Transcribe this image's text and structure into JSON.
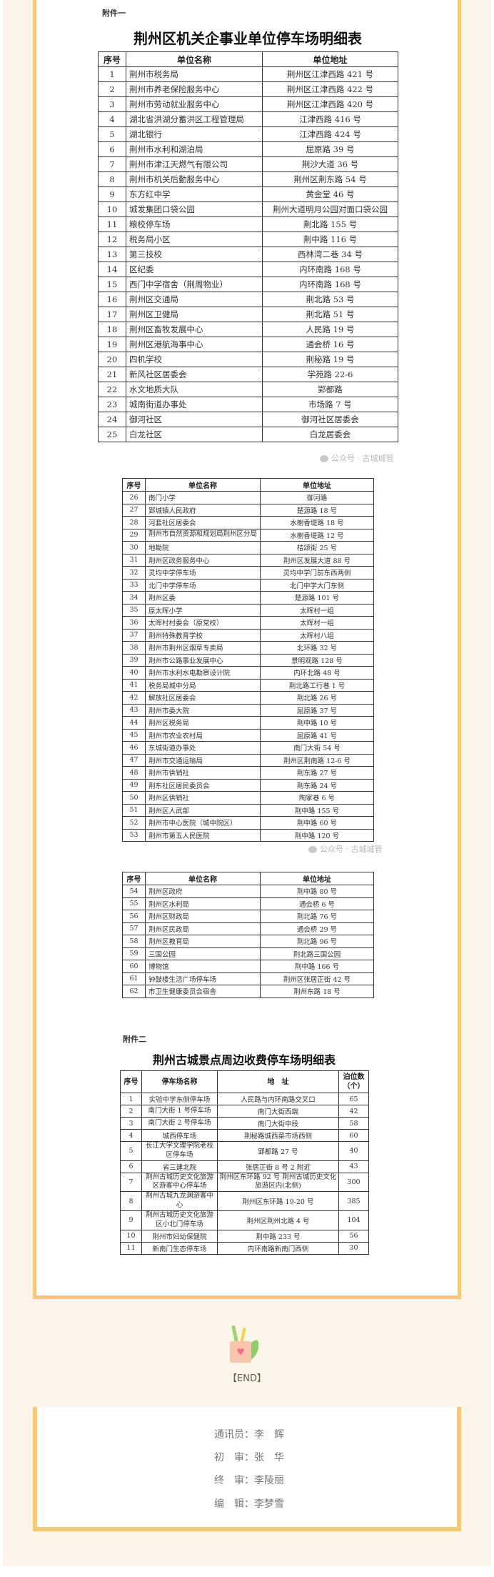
{
  "attachment1": {
    "label": "附件一",
    "title": "荆州区机关企事业单位停车场明细表",
    "headers": [
      "序号",
      "单位名称",
      "单位地址"
    ],
    "rows": [
      [
        "1",
        "荆州市税务局",
        "荆州区江津西路 421 号"
      ],
      [
        "2",
        "荆州市养老保险服务中心",
        "荆州区江津西路 422 号"
      ],
      [
        "3",
        "荆州市劳动就业服务中心",
        "荆州区江津西路 420 号"
      ],
      [
        "4",
        "湖北省洪湖分蓄洪区工程管理局",
        "江津西路 416 号"
      ],
      [
        "5",
        "湖北银行",
        "江津西路 424 号"
      ],
      [
        "6",
        "荆州市水利和湖泊局",
        "屈原路 39 号"
      ],
      [
        "7",
        "荆州市津江天燃气有限公司",
        "荆沙大道 36 号"
      ],
      [
        "8",
        "荆州市机关后勤服务中心",
        "荆州区荆东路 54 号"
      ],
      [
        "9",
        "东方红中学",
        "黄金堂 46 号"
      ],
      [
        "10",
        "城发集团口袋公园",
        "荆州大道明月公园对面口袋公园"
      ],
      [
        "11",
        "粮校停车场",
        "荆北路 155 号"
      ],
      [
        "12",
        "税务局小区",
        "荆中路 116 号"
      ],
      [
        "13",
        "第三技校",
        "西林湾二巷 34 号"
      ],
      [
        "14",
        "区纪委",
        "内环南路 168 号"
      ],
      [
        "15",
        "西门中学宿舍（荆周物业）",
        "内环南路 168 号"
      ],
      [
        "16",
        "荆州区交通局",
        "荆北路 53 号"
      ],
      [
        "17",
        "荆州区卫健局",
        "荆北路 51 号"
      ],
      [
        "18",
        "荆州区畜牧发展中心",
        "人民路 19 号"
      ],
      [
        "19",
        "荆州区港航海事中心",
        "通会桥 16 号"
      ],
      [
        "20",
        "四机学校",
        "荆秘路 19 号"
      ],
      [
        "21",
        "新风社区居委会",
        "学苑路 22-6"
      ],
      [
        "22",
        "水文地质大队",
        "郢都路"
      ],
      [
        "23",
        "城南街道办事处",
        "市场路 7 号"
      ],
      [
        "24",
        "御河社区",
        "御河社区居委会"
      ],
      [
        "25",
        "白龙社区",
        "白龙居委会"
      ]
    ]
  },
  "attachment1_part2": {
    "headers": [
      "序号",
      "单位名称",
      "单位地址"
    ],
    "rows": [
      [
        "26",
        "南门小学",
        "御河路"
      ],
      [
        "27",
        "郢城镇人民政府",
        "楚源路 18 号"
      ],
      [
        "28",
        "河套社区居委会",
        "水榭香堤路 18 号"
      ],
      [
        "29",
        "荆州市自然资源和规划局荆州区分局",
        "水榭香堤路 12 号"
      ],
      [
        "30",
        "地勘院",
        "桔颂街 25 号"
      ],
      [
        "31",
        "荆州区政务服务中心",
        "荆州区发展大道 88 号"
      ],
      [
        "32",
        "灵均中学停车场",
        "灵均中学门前东西两侧"
      ],
      [
        "33",
        "北门中学停车场",
        "北门中学大门东侧"
      ],
      [
        "34",
        "荆州区委",
        "楚源路 101 号"
      ],
      [
        "35",
        "原太晖小学",
        "太晖村一组"
      ],
      [
        "36",
        "太晖村村委会（原党校）",
        "太晖村一组"
      ],
      [
        "37",
        "荆州特殊教育学校",
        "太晖村八组"
      ],
      [
        "38",
        "荆州市荆州区烟草专卖局",
        "北环路 32 号"
      ],
      [
        "39",
        "荆州市公路事业发展中心",
        "景明观路 128 号"
      ],
      [
        "40",
        "荆州市水利水电勘察设计院",
        "内环北路 48 号"
      ],
      [
        "41",
        "税务局城中分局",
        "荆北路工行巷 1 号"
      ],
      [
        "42",
        "解放社区居委会",
        "荆北路 26 号"
      ],
      [
        "43",
        "荆州市委大院",
        "屈原路 37 号"
      ],
      [
        "44",
        "荆州区税务局",
        "荆中路 10 号"
      ],
      [
        "45",
        "荆州市农业农村局",
        "屈原路 41 号"
      ],
      [
        "46",
        "东城街道办事处",
        "南门大街 54 号"
      ],
      [
        "47",
        "荆州市交通运输局",
        "荆州区荆南路 12-6 号"
      ],
      [
        "48",
        "荆州市供销社",
        "荆东路 27 号"
      ],
      [
        "49",
        "荆东社区居民委员会",
        "荆东路 24 号"
      ],
      [
        "50",
        "荆州区供销社",
        "陶家巷 6 号"
      ],
      [
        "51",
        "荆州区人武部",
        "荆中路 155 号"
      ],
      [
        "52",
        "荆州市中心医院（城中院区）",
        "荆中路 60 号"
      ],
      [
        "53",
        "荆州市第五人民医院",
        "荆中路 120 号"
      ]
    ]
  },
  "attachment1_part3": {
    "headers": [
      "序号",
      "单位名称",
      "单位地址"
    ],
    "rows": [
      [
        "54",
        "荆州区政府",
        "荆中路 80 号"
      ],
      [
        "55",
        "荆州区水利局",
        "通会桥 6 号"
      ],
      [
        "56",
        "荆州区财政局",
        "荆北路 76 号"
      ],
      [
        "57",
        "荆州区民政局",
        "通会桥 29 号"
      ],
      [
        "58",
        "荆州区教育局",
        "荆北路 96 号"
      ],
      [
        "59",
        "三国公园",
        "荆北路三国公园"
      ],
      [
        "60",
        "博物馆",
        "荆中路 166 号"
      ],
      [
        "61",
        "钟鼓楼生活广场停车场",
        "荆州区张居正街 42 号"
      ],
      [
        "62",
        "市卫生健康委员会宿舍",
        "荆州东路 18 号"
      ]
    ]
  },
  "attachment2": {
    "label": "附件二",
    "title": "荆州古城景点周边收费停车场明细表",
    "headers": [
      "序号",
      "停车场名称",
      "地　址",
      "泊位数（个）"
    ],
    "rows": [
      [
        "1",
        "实验中学东侧停车场",
        "人民路与内环南路交叉口",
        "65"
      ],
      [
        "2",
        "南门大街 1 号停车场",
        "南门大街西端",
        "42"
      ],
      [
        "3",
        "南门大街 2 号停车场",
        "南门大街中段",
        "58"
      ],
      [
        "4",
        "城西停车场",
        "荆秘路城西菜市场西侧",
        "60"
      ],
      [
        "5",
        "长江大学文理学院老校区停车场",
        "郢都路 27 号",
        "40"
      ],
      [
        "6",
        "省三建北院",
        "张居正街 8 号 2 附近",
        "43"
      ],
      [
        "7",
        "荆州古城历史文化旅游区游客中心停车场",
        "荆州区东环路 92 号 荆州古城历史文化旅游区内(北侧)",
        "300"
      ],
      [
        "8",
        "荆州古城九龙渊游客中心",
        "荆州区东环路 19-20 号",
        "385"
      ],
      [
        "9",
        "荆州古城历史文化旅游区小北门停车场",
        "荆州区荆州北路 4 号",
        "104"
      ],
      [
        "10",
        "荆州市妇幼保健院",
        "荆中路 233 号",
        "56"
      ],
      [
        "11",
        "新南门生态停车场",
        "内环南路新南门西侧",
        "30"
      ]
    ]
  },
  "watermark": "公众号 · 古城城管",
  "footer": {
    "end": "【END】",
    "credits": [
      "通讯员：李　辉",
      "初　审：张　华",
      "终　审：李陵丽",
      "编　辑：李梦雪"
    ]
  },
  "colors": {
    "accent": "#fbc96b",
    "background": "#fdf5ea"
  }
}
